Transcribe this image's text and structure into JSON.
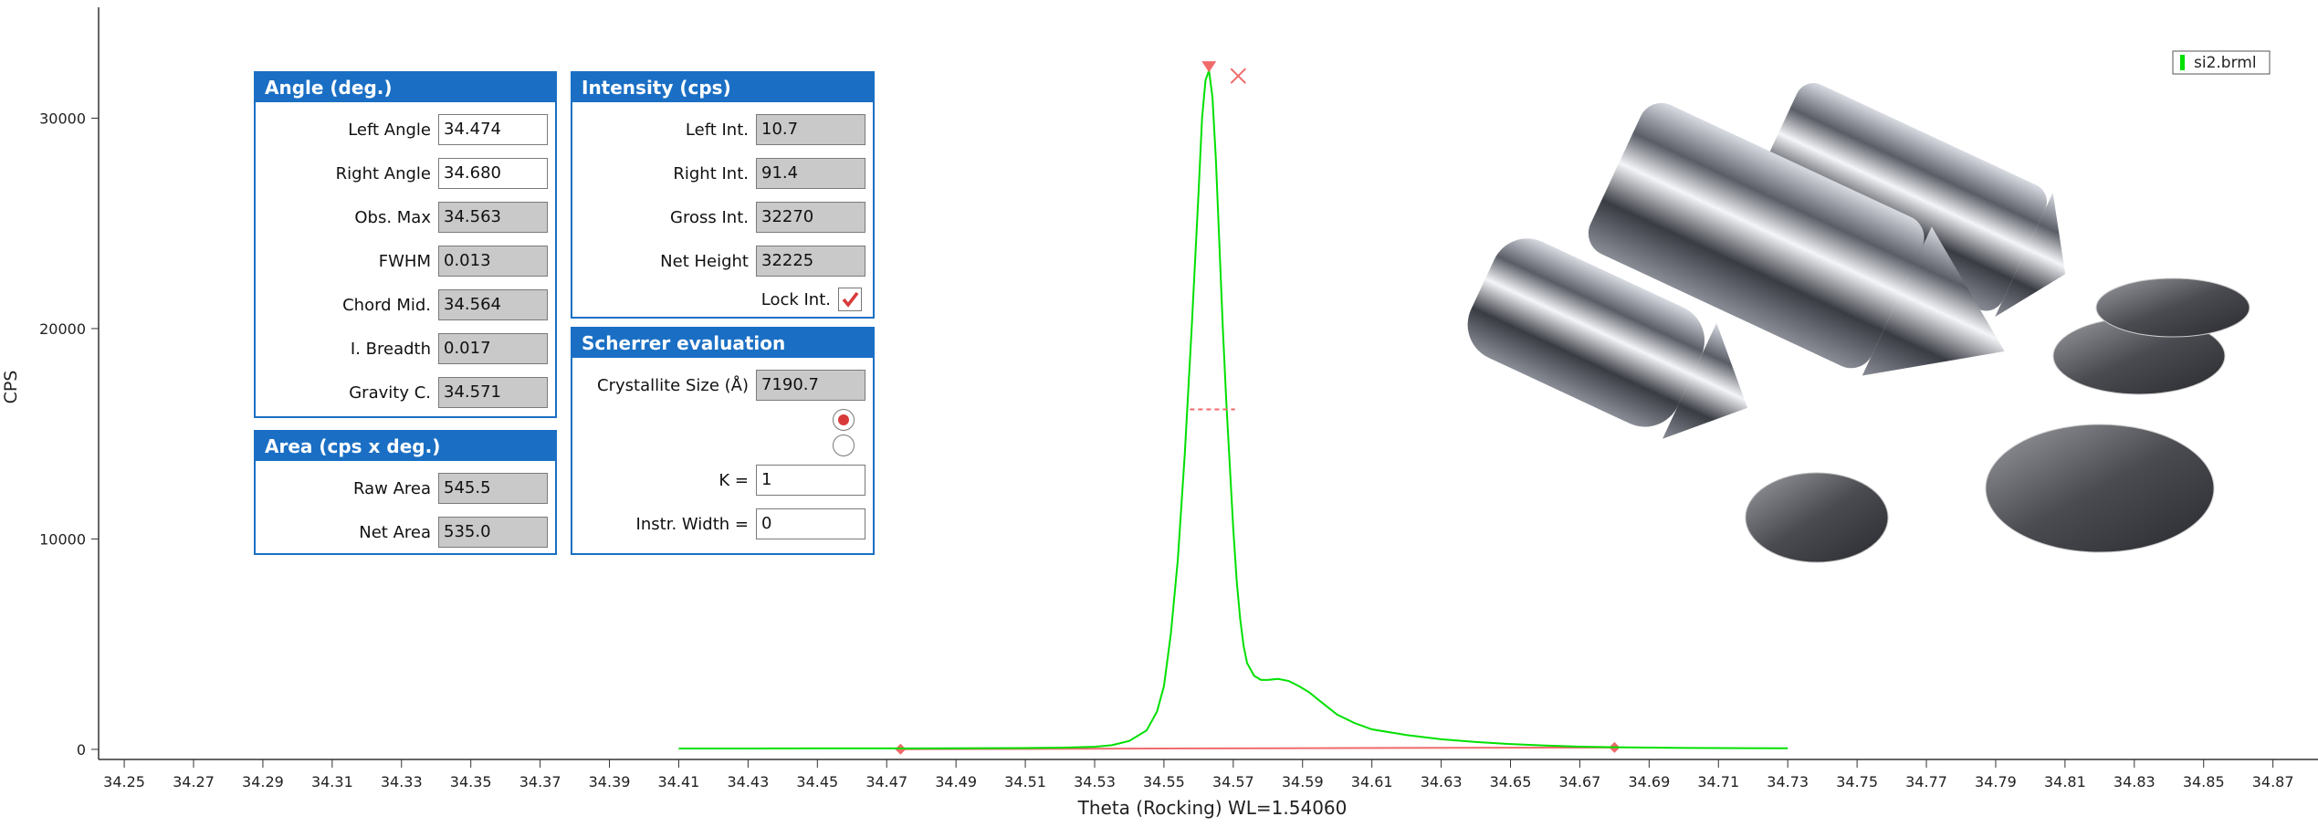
{
  "chart_data": {
    "type": "line",
    "x_label": "Theta (Rocking) WL=1.54060",
    "y_label": "CPS",
    "x": [
      34.41,
      34.43,
      34.45,
      34.47,
      34.49,
      34.51,
      34.52,
      34.53,
      34.535,
      34.54,
      34.545,
      34.548,
      34.55,
      34.552,
      34.554,
      34.556,
      34.558,
      34.56,
      34.561,
      34.562,
      34.563,
      34.564,
      34.565,
      34.566,
      34.567,
      34.568,
      34.569,
      34.57,
      34.571,
      34.572,
      34.573,
      34.574,
      34.576,
      34.578,
      34.58,
      34.583,
      34.586,
      34.589,
      34.592,
      34.595,
      34.6,
      34.605,
      34.61,
      34.62,
      34.63,
      34.64,
      34.65,
      34.66,
      34.67,
      34.68,
      34.7,
      34.73
    ],
    "series": [
      {
        "name": "si2.brml",
        "color": "#00e000",
        "values": [
          40,
          40,
          45,
          45,
          50,
          60,
          80,
          120,
          200,
          400,
          900,
          1800,
          3000,
          5500,
          9000,
          14000,
          20000,
          26500,
          30000,
          31800,
          32270,
          31000,
          28000,
          24000,
          20000,
          16500,
          13500,
          10500,
          8000,
          6200,
          4900,
          4100,
          3500,
          3300,
          3300,
          3350,
          3250,
          3000,
          2700,
          2300,
          1650,
          1250,
          950,
          680,
          480,
          350,
          250,
          180,
          130,
          100,
          70,
          50
        ]
      }
    ],
    "xlim": [
      34.2426,
      34.883
    ],
    "ylim": [
      -480,
      35270
    ],
    "xticks": [
      34.25,
      34.27,
      34.29,
      34.31,
      34.33,
      34.35,
      34.37,
      34.39,
      34.41,
      34.43,
      34.45,
      34.47,
      34.49,
      34.51,
      34.53,
      34.55,
      34.57,
      34.59,
      34.61,
      34.63,
      34.65,
      34.67,
      34.69,
      34.71,
      34.73,
      34.75,
      34.77,
      34.79,
      34.81,
      34.83,
      34.85,
      34.87
    ],
    "yticks": [
      0,
      10000,
      20000,
      30000
    ],
    "legend": "upper right",
    "marker_color": "#f06a6a"
  },
  "panels": [
    {
      "title": "Angle (deg.)",
      "rows": [
        {
          "label": "Left Angle",
          "value": "34.474",
          "editable": true
        },
        {
          "label": "Right Angle",
          "value": "34.680",
          "editable": true
        },
        {
          "label": "Obs. Max",
          "value": "34.563",
          "editable": false
        },
        {
          "label": "FWHM",
          "value": "0.013",
          "editable": false
        },
        {
          "label": "Chord Mid.",
          "value": "34.564",
          "editable": false
        },
        {
          "label": "I. Breadth",
          "value": "0.017",
          "editable": false
        },
        {
          "label": "Gravity C.",
          "value": "34.571",
          "editable": false
        }
      ]
    },
    {
      "title": "Area (cps x deg.)",
      "rows": [
        {
          "label": "Raw Area",
          "value": "545.5",
          "editable": false
        },
        {
          "label": "Net Area",
          "value": "535.0",
          "editable": false
        }
      ]
    },
    {
      "title": "Intensity (cps)",
      "rows": [
        {
          "label": "Left Int.",
          "value": "10.7",
          "editable": false
        },
        {
          "label": "Right Int.",
          "value": "91.4",
          "editable": false
        },
        {
          "label": "Gross Int.",
          "value": "32270",
          "editable": false
        },
        {
          "label": "Net Height",
          "value": "32225",
          "editable": false
        },
        {
          "label": "Lock Int.",
          "checked": true
        }
      ]
    },
    {
      "title": "Scherrer evaluation",
      "rows": [
        {
          "label": "Crystallite Size (Å)",
          "value": "7190.7",
          "editable": false
        },
        {
          "selected": true
        },
        {
          "selected": false
        },
        {
          "label": "K =",
          "value": "1",
          "editable": true
        },
        {
          "label": "Instr. Width =",
          "value": "0",
          "editable": true
        }
      ]
    }
  ]
}
